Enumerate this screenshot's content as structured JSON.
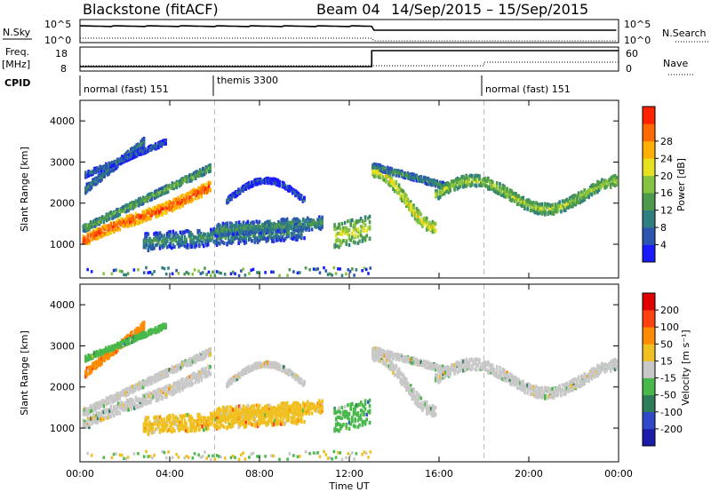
{
  "chart_data": {
    "type": "heatmap",
    "station": "Blackstone (fitACF)",
    "beam": "Beam 04",
    "date_range": "14/Sep/2015 – 15/Sep/2015",
    "xlabel": "Time UT",
    "x_ticks": [
      "00:00",
      "04:00",
      "08:00",
      "12:00",
      "16:00",
      "20:00",
      "00:00"
    ],
    "x_range_hours": [
      0,
      24
    ],
    "header_panels": {
      "nsky": {
        "label": "N.Sky",
        "right_label": "N.Search",
        "left_ticks": [
          "10^5",
          "10^0"
        ],
        "right_ticks": [
          "10^5",
          "10^0"
        ]
      },
      "freq": {
        "label": "Freq.",
        "unit": "[MHz]",
        "left_ticks": [
          "18",
          "8"
        ],
        "right_label": "Nave",
        "right_ticks": [
          "60",
          "0"
        ]
      },
      "cpid": {
        "label": "CPID",
        "segments": [
          {
            "name": "normal (fast) 151",
            "start_hr": 0,
            "end_hr": 6
          },
          {
            "name": "themis 3300",
            "start_hr": 6,
            "end_hr": 18
          },
          {
            "name": "normal (fast) 151",
            "start_hr": 18,
            "end_hr": 24
          }
        ]
      },
      "freq_step_hr": 13.0
    },
    "panels": [
      {
        "name": "power",
        "ylabel": "Slant Range [km]",
        "y_range": [
          180,
          4500
        ],
        "y_ticks": [
          "1000",
          "2000",
          "3000",
          "4000"
        ],
        "colorbar": {
          "label": "Power [dB]",
          "ticks": [
            "4",
            "8",
            "12",
            "16",
            "20",
            "24",
            "28"
          ],
          "colors": [
            "#1a1aff",
            "#2c55b0",
            "#2f7f80",
            "#4d9a4d",
            "#86c340",
            "#e6e020",
            "#ffb000",
            "#ff6a00",
            "#ff2200"
          ]
        }
      },
      {
        "name": "velocity",
        "ylabel": "Slant Range [km]",
        "y_range": [
          180,
          4500
        ],
        "y_ticks": [
          "1000",
          "2000",
          "3000",
          "4000"
        ],
        "colorbar": {
          "label": "Velocity [m s⁻¹]",
          "ticks": [
            "200",
            "100",
            "50",
            "15",
            "-15",
            "-50",
            "-100",
            "-200"
          ],
          "colors": [
            "#1c1ca8",
            "#3048c8",
            "#2e7d5a",
            "#49b84b",
            "#c8c8c8",
            "#f0c020",
            "#ff8c00",
            "#ff4010",
            "#e00000"
          ]
        }
      }
    ]
  }
}
